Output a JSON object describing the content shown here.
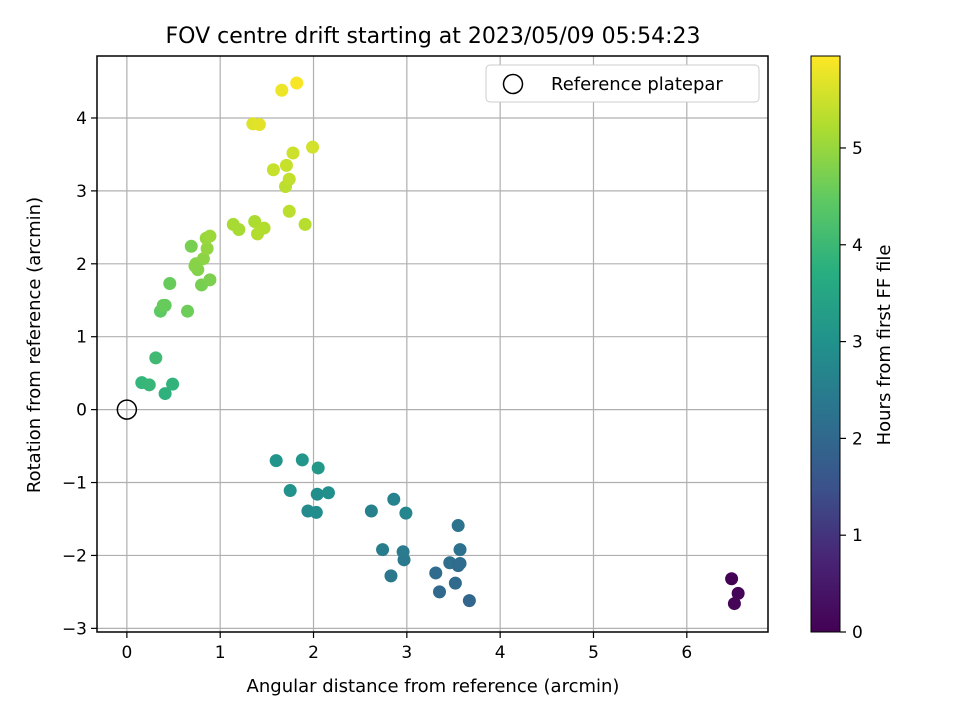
{
  "chart_data": {
    "type": "scatter",
    "title": "FOV centre drift starting at 2023/05/09 05:54:23",
    "xlabel": "Angular distance from reference (arcmin)",
    "ylabel": "Rotation from reference (arcmin)",
    "xlim": [
      -0.32,
      6.87
    ],
    "ylim": [
      -3.05,
      4.85
    ],
    "xticks": [
      0,
      1,
      2,
      3,
      4,
      5,
      6
    ],
    "yticks": [
      -3,
      -2,
      -1,
      0,
      1,
      2,
      3,
      4
    ],
    "grid": true,
    "legend": {
      "position": "top-right",
      "entries": [
        "Reference platepar"
      ]
    },
    "reference_point": {
      "x": 0,
      "y": 0,
      "marker": "open-circle",
      "label": "Reference platepar"
    },
    "colorbar": {
      "label": "Hours from first FF file",
      "colormap": "viridis",
      "range": [
        0,
        5.95
      ],
      "ticks": [
        0,
        1,
        2,
        3,
        4,
        5
      ]
    },
    "points": [
      {
        "x": 6.48,
        "y": -2.32,
        "c": 0.02
      },
      {
        "x": 6.55,
        "y": -2.52,
        "c": 0.06
      },
      {
        "x": 6.51,
        "y": -2.66,
        "c": 0.1
      },
      {
        "x": 3.67,
        "y": -2.62,
        "c": 1.95
      },
      {
        "x": 3.35,
        "y": -2.5,
        "c": 2.0
      },
      {
        "x": 3.52,
        "y": -2.38,
        "c": 2.05
      },
      {
        "x": 3.31,
        "y": -2.24,
        "c": 2.1
      },
      {
        "x": 3.46,
        "y": -2.1,
        "c": 2.15
      },
      {
        "x": 3.55,
        "y": -2.14,
        "c": 2.05
      },
      {
        "x": 3.57,
        "y": -2.11,
        "c": 2.1
      },
      {
        "x": 3.57,
        "y": -1.92,
        "c": 2.2
      },
      {
        "x": 3.55,
        "y": -1.59,
        "c": 2.25
      },
      {
        "x": 2.83,
        "y": -2.28,
        "c": 2.35
      },
      {
        "x": 2.97,
        "y": -2.06,
        "c": 2.4
      },
      {
        "x": 2.96,
        "y": -1.95,
        "c": 2.45
      },
      {
        "x": 2.74,
        "y": -1.92,
        "c": 2.5
      },
      {
        "x": 2.62,
        "y": -1.39,
        "c": 2.6
      },
      {
        "x": 2.86,
        "y": -1.23,
        "c": 2.65
      },
      {
        "x": 2.99,
        "y": -1.42,
        "c": 2.7
      },
      {
        "x": 1.94,
        "y": -1.39,
        "c": 2.8
      },
      {
        "x": 2.03,
        "y": -1.41,
        "c": 2.85
      },
      {
        "x": 2.04,
        "y": -1.16,
        "c": 2.9
      },
      {
        "x": 2.16,
        "y": -1.14,
        "c": 2.95
      },
      {
        "x": 1.75,
        "y": -1.11,
        "c": 3.0
      },
      {
        "x": 1.6,
        "y": -0.7,
        "c": 3.05
      },
      {
        "x": 1.88,
        "y": -0.69,
        "c": 3.1
      },
      {
        "x": 2.05,
        "y": -0.8,
        "c": 3.15
      },
      {
        "x": 0.41,
        "y": 0.22,
        "c": 3.8
      },
      {
        "x": 0.49,
        "y": 0.35,
        "c": 3.85
      },
      {
        "x": 0.16,
        "y": 0.37,
        "c": 3.9
      },
      {
        "x": 0.24,
        "y": 0.34,
        "c": 3.95
      },
      {
        "x": 0.31,
        "y": 0.71,
        "c": 4.05
      },
      {
        "x": 0.36,
        "y": 1.35,
        "c": 4.45
      },
      {
        "x": 0.41,
        "y": 1.43,
        "c": 4.5
      },
      {
        "x": 0.39,
        "y": 1.43,
        "c": 4.55
      },
      {
        "x": 0.46,
        "y": 1.73,
        "c": 4.55
      },
      {
        "x": 0.65,
        "y": 1.35,
        "c": 4.6
      },
      {
        "x": 0.8,
        "y": 1.71,
        "c": 4.7
      },
      {
        "x": 0.89,
        "y": 1.78,
        "c": 4.75
      },
      {
        "x": 0.76,
        "y": 1.92,
        "c": 4.8
      },
      {
        "x": 0.74,
        "y": 2.0,
        "c": 4.85
      },
      {
        "x": 0.82,
        "y": 2.07,
        "c": 4.9
      },
      {
        "x": 0.73,
        "y": 1.97,
        "c": 4.85
      },
      {
        "x": 0.69,
        "y": 2.24,
        "c": 4.7
      },
      {
        "x": 0.86,
        "y": 2.21,
        "c": 4.95
      },
      {
        "x": 0.85,
        "y": 2.35,
        "c": 5.0
      },
      {
        "x": 0.89,
        "y": 2.38,
        "c": 5.05
      },
      {
        "x": 1.14,
        "y": 2.54,
        "c": 5.15
      },
      {
        "x": 1.2,
        "y": 2.47,
        "c": 5.15
      },
      {
        "x": 1.37,
        "y": 2.58,
        "c": 5.2
      },
      {
        "x": 1.47,
        "y": 2.49,
        "c": 5.25
      },
      {
        "x": 1.4,
        "y": 2.41,
        "c": 5.25
      },
      {
        "x": 1.91,
        "y": 2.54,
        "c": 5.3
      },
      {
        "x": 1.74,
        "y": 2.72,
        "c": 5.35
      },
      {
        "x": 1.7,
        "y": 3.06,
        "c": 5.35
      },
      {
        "x": 1.74,
        "y": 3.16,
        "c": 5.4
      },
      {
        "x": 1.57,
        "y": 3.29,
        "c": 5.45
      },
      {
        "x": 1.71,
        "y": 3.35,
        "c": 5.45
      },
      {
        "x": 1.78,
        "y": 3.52,
        "c": 5.5
      },
      {
        "x": 1.99,
        "y": 3.6,
        "c": 5.55
      },
      {
        "x": 1.35,
        "y": 3.92,
        "c": 5.65
      },
      {
        "x": 1.42,
        "y": 3.91,
        "c": 5.7
      },
      {
        "x": 1.66,
        "y": 4.38,
        "c": 5.8
      },
      {
        "x": 1.82,
        "y": 4.48,
        "c": 5.9
      }
    ]
  }
}
